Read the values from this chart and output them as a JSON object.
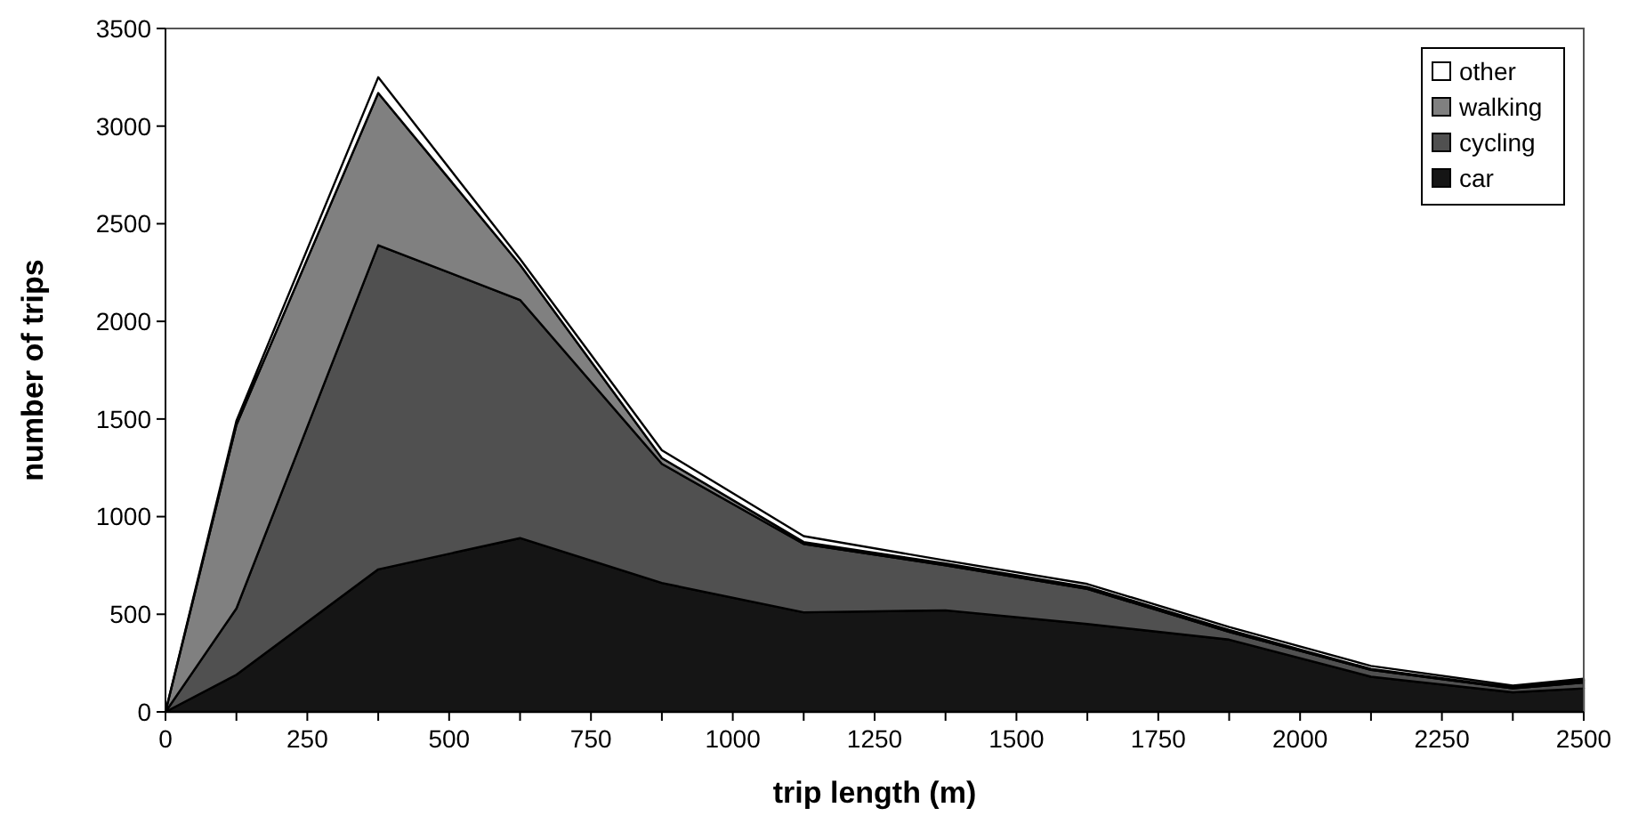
{
  "chart_data": {
    "type": "area",
    "stacked": true,
    "xlabel": "trip length (m)",
    "ylabel": "number of trips",
    "x": [
      0,
      125,
      375,
      625,
      875,
      1125,
      1375,
      1625,
      1875,
      2125,
      2375,
      2500
    ],
    "series": [
      {
        "name": "car",
        "color": "#151515",
        "values": [
          0,
          190,
          730,
          890,
          660,
          510,
          520,
          450,
          370,
          180,
          100,
          120
        ]
      },
      {
        "name": "cycling",
        "color": "#505050",
        "values": [
          0,
          340,
          1660,
          1220,
          610,
          350,
          230,
          180,
          40,
          35,
          20,
          30
        ]
      },
      {
        "name": "walking",
        "color": "#808080",
        "values": [
          0,
          940,
          780,
          180,
          30,
          10,
          10,
          10,
          10,
          5,
          5,
          10
        ]
      },
      {
        "name": "other",
        "color": "#ffffff",
        "values": [
          0,
          20,
          80,
          30,
          40,
          30,
          15,
          15,
          15,
          15,
          10,
          10
        ]
      }
    ],
    "xlim": [
      0,
      2500
    ],
    "xticks": [
      0,
      {
        "value": 125,
        "label": null
      },
      250,
      {
        "value": 375,
        "label": null
      },
      500,
      {
        "value": 625,
        "label": null
      },
      750,
      {
        "value": 875,
        "label": null
      },
      1000,
      {
        "value": 1125,
        "label": null
      },
      1250,
      {
        "value": 1375,
        "label": null
      },
      1500,
      {
        "value": 1625,
        "label": null
      },
      1750,
      {
        "value": 1875,
        "label": null
      },
      2000,
      {
        "value": 2125,
        "label": null
      },
      2250,
      {
        "value": 2375,
        "label": null
      },
      2500
    ],
    "ylim": [
      0,
      3500
    ],
    "yticks": [
      0,
      500,
      1000,
      1500,
      2000,
      2500,
      3000,
      3500
    ],
    "grid": false,
    "legend": "top right"
  }
}
